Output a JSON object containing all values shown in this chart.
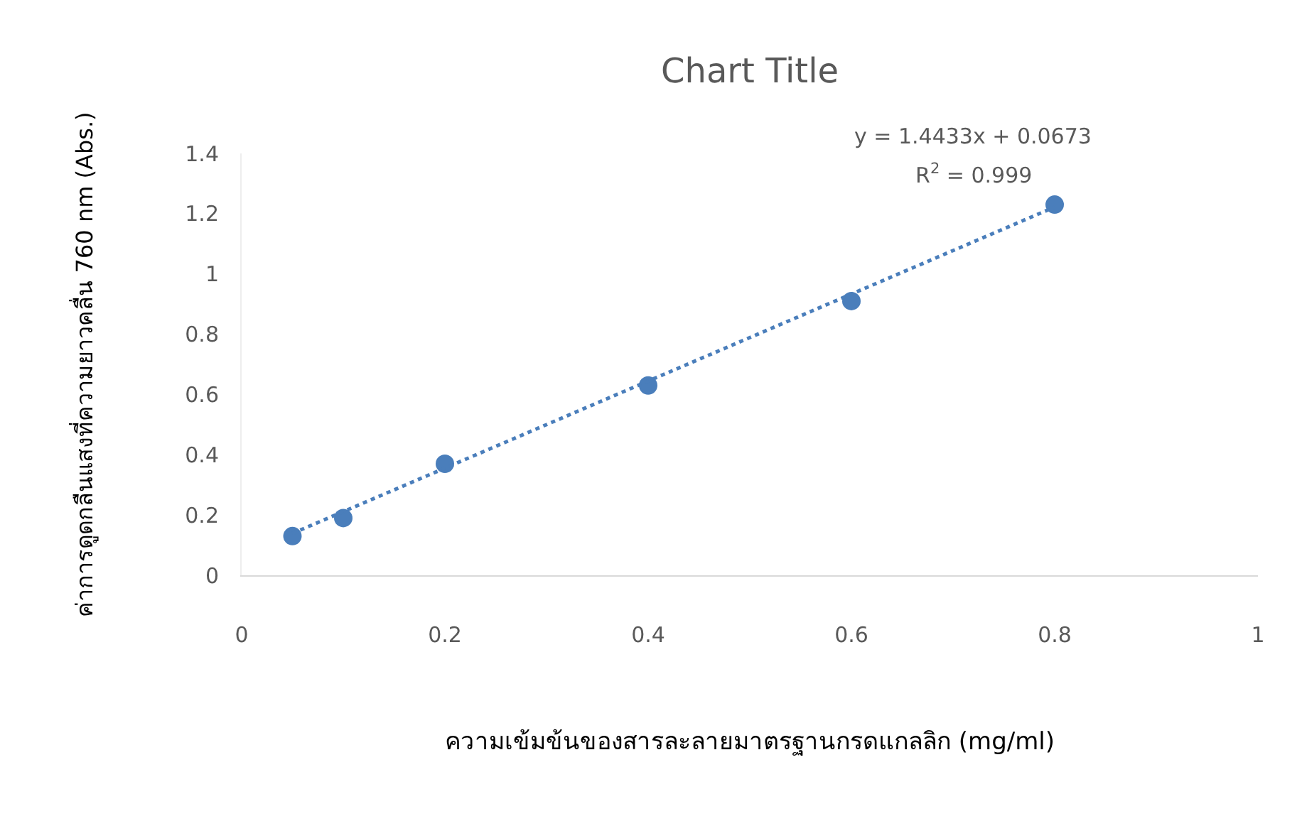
{
  "chart_data": {
    "type": "scatter",
    "title": "Chart Title",
    "xlabel": "ความเข้มข้นของสารละลายมาตรฐานกรดแกลลิก (mg/ml)",
    "ylabel": "ค่าการดูดกลืนแสงที่ความยาวคลื่น 760 nm (Abs.)",
    "x": [
      0.05,
      0.1,
      0.2,
      0.4,
      0.6,
      0.8
    ],
    "series": [
      {
        "color": "#4a7ebb",
        "marker": "circle",
        "values": [
          0.13,
          0.19,
          0.37,
          0.63,
          0.91,
          1.23
        ]
      },
      {
        "type": "line",
        "color": "#4a7ebb",
        "line_style": "dotted",
        "marker": "none",
        "x": [
          0.05,
          0.8
        ],
        "values": [
          0.139,
          1.222
        ]
      }
    ],
    "annotations": [
      "y = 1.4433x + 0.0673",
      "R$^{2}$ = 0.999"
    ],
    "xlim": [
      0,
      1
    ],
    "xticks": [
      0,
      0.2,
      0.4,
      0.6,
      0.8,
      1
    ],
    "ylim": [
      0,
      1.4
    ],
    "yticks": [
      0,
      0.2,
      0.4,
      0.6,
      0.8,
      1,
      1.2,
      1.4
    ]
  }
}
